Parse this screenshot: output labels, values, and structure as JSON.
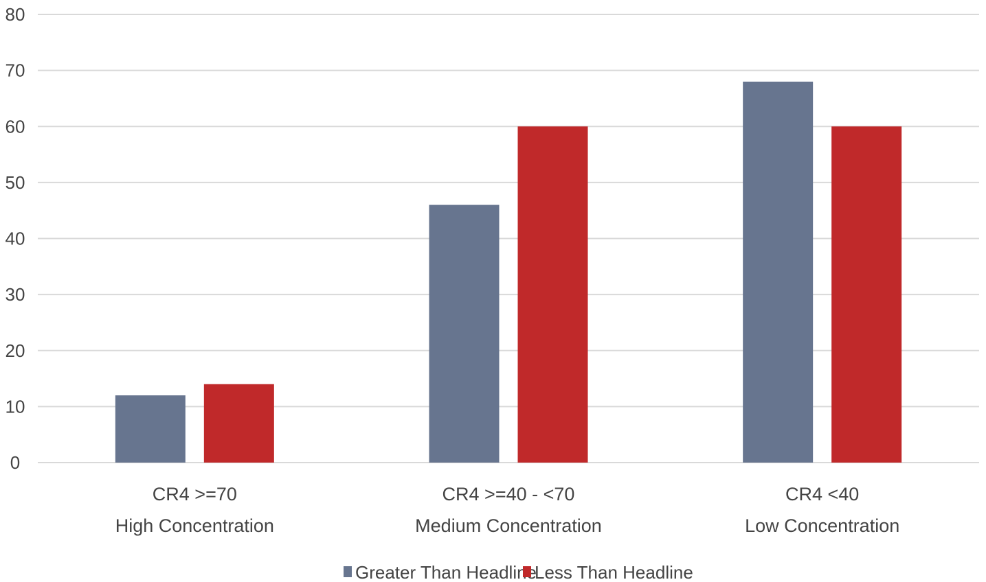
{
  "chart_data": {
    "type": "bar",
    "title": "",
    "xlabel": "",
    "ylabel": "",
    "ylim": [
      0,
      80
    ],
    "yticks": [
      0,
      10,
      20,
      30,
      40,
      50,
      60,
      70,
      80
    ],
    "grid": true,
    "legend_position": "bottom",
    "categories": [
      [
        "CR4 >=70",
        "High Concentration"
      ],
      [
        "CR4 >=40 - <70",
        "Medium Concentration"
      ],
      [
        "CR4 <40",
        "Low Concentration"
      ]
    ],
    "series": [
      {
        "name": "Greater Than Headline",
        "color": "#67758f",
        "values": [
          12,
          46,
          68
        ]
      },
      {
        "name": "Less Than Headline",
        "color": "#c0292a",
        "values": [
          14,
          60,
          60
        ]
      }
    ]
  }
}
